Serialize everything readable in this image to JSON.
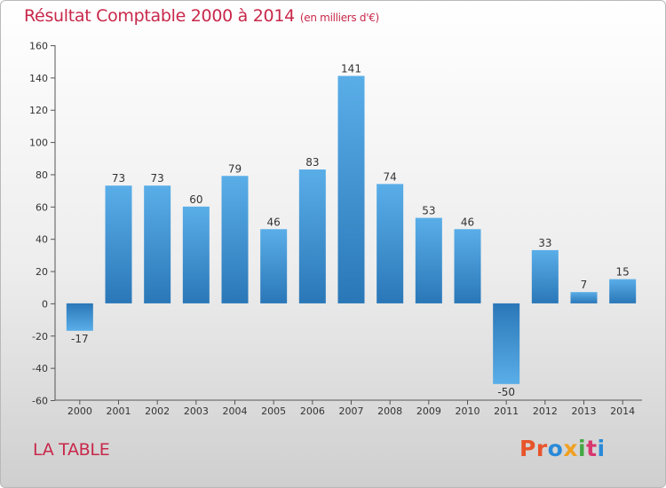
{
  "header": {
    "title": "Résultat Comptable 2000 à 2014",
    "subtitle": "(en milliers d'€)"
  },
  "footer": {
    "commune": "LA TABLE",
    "brand": "Proxiti"
  },
  "colors": {
    "title": "#c8284a",
    "bar_light": "#5aaee8",
    "bar_dark": "#2a77b8",
    "brand_letters": [
      "#e8542a",
      "#e8542a",
      "#2a8ad8",
      "#f0a020",
      "#44a844",
      "#d83870",
      "#2a8ad8"
    ]
  },
  "chart_data": {
    "type": "bar",
    "title": "Résultat Comptable 2000 à 2014",
    "unit": "en milliers d'€",
    "xlabel": "",
    "ylabel": "",
    "categories": [
      "2000",
      "2001",
      "2002",
      "2003",
      "2004",
      "2005",
      "2006",
      "2007",
      "2008",
      "2009",
      "2010",
      "2011",
      "2012",
      "2013",
      "2014"
    ],
    "values": [
      -17,
      73,
      73,
      60,
      79,
      46,
      83,
      141,
      74,
      53,
      46,
      -50,
      33,
      7,
      15
    ],
    "data_labels": [
      "-17",
      "73",
      "73",
      "60",
      "79",
      "46",
      "83",
      "141",
      "74",
      "53",
      "46",
      "-50",
      "33",
      "7",
      "15"
    ],
    "ylim": [
      -60,
      160
    ],
    "yticks": [
      -60,
      -40,
      -20,
      0,
      20,
      40,
      60,
      80,
      100,
      120,
      140,
      160
    ],
    "grid": false,
    "legend": "none"
  }
}
